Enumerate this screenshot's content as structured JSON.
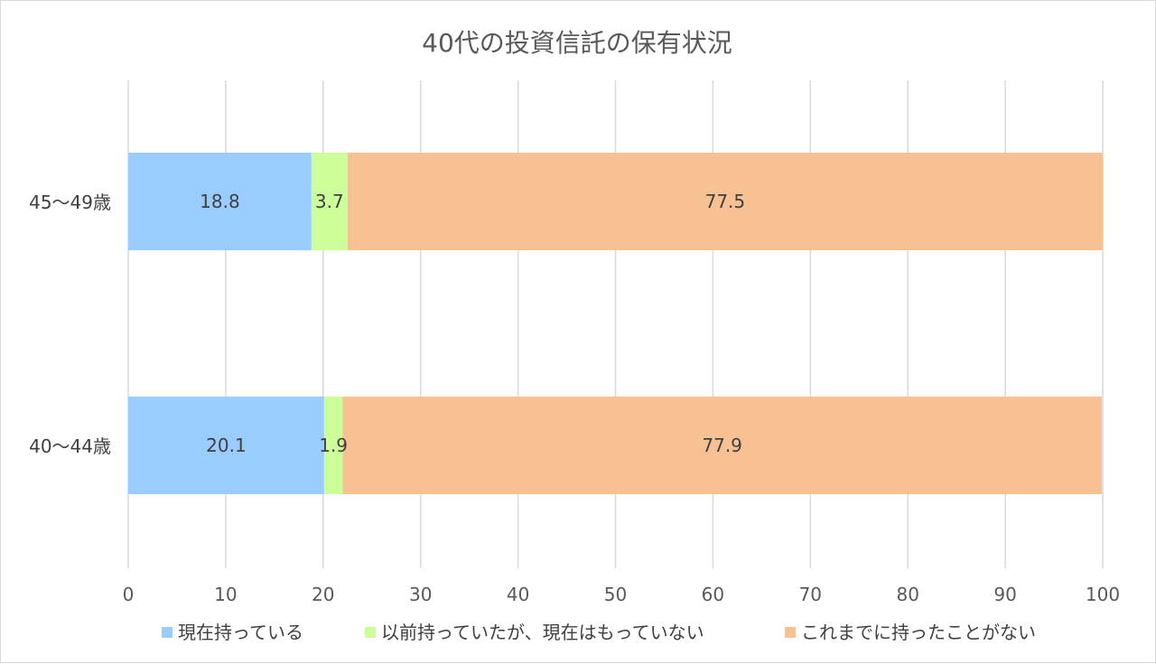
{
  "chart_data": {
    "type": "bar",
    "orientation": "horizontal",
    "stacked": true,
    "title": "40代の投資信託の保有状況",
    "categories": [
      "45～49歳",
      "40～44歳"
    ],
    "series": [
      {
        "name": "現在持っている",
        "color": "#99ccff",
        "values": [
          18.8,
          20.1
        ]
      },
      {
        "name": "以前持っていたが、現在はもっていない",
        "color": "#ccff99",
        "values": [
          3.7,
          1.9
        ]
      },
      {
        "name": "これまでに持ったことがない",
        "color": "#f8c194",
        "values": [
          77.5,
          77.9
        ]
      }
    ],
    "xlim": [
      0,
      100
    ],
    "xticks": [
      "0",
      "10",
      "20",
      "30",
      "40",
      "50",
      "60",
      "70",
      "80",
      "90",
      "100"
    ],
    "data_labels": [
      [
        "18.8",
        "3.7",
        "77.5"
      ],
      [
        "20.1",
        "1.9",
        "77.9"
      ]
    ],
    "grid": true,
    "legend": "bottom"
  }
}
